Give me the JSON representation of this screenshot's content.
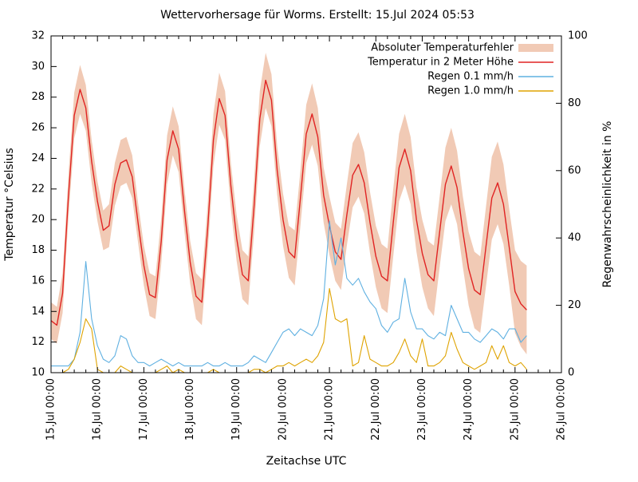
{
  "accent_colors": {
    "error_band": "#f1cab5",
    "temperature_line": "#e02423",
    "rain01_line": "#5fb0e1",
    "rain10_line": "#dfa300",
    "frame": "#000000",
    "background": "#ffffff"
  },
  "chart_data": {
    "type": "line",
    "title": "Wettervorhersage für Worms. Erstellt: 15.Jul 2024 05:53",
    "xlabel": "Zeitachse UTC",
    "ylabel": "Temperatur °Celsius",
    "y2label": "Regenwahrscheinlichkeit in %",
    "xlim_days": [
      0,
      11
    ],
    "ylim": [
      10,
      32
    ],
    "y2lim": [
      0,
      100
    ],
    "y_ticks": [
      10,
      12,
      14,
      16,
      18,
      20,
      22,
      24,
      26,
      28,
      30,
      32
    ],
    "y2_ticks": [
      0,
      20,
      40,
      60,
      80,
      100
    ],
    "x_tick_labels": [
      "15.Jul 00:00",
      "16.Jul 00:00",
      "17.Jul 00:00",
      "18.Jul 00:00",
      "19.Jul 00:00",
      "20.Jul 00:00",
      "21.Jul 00:00",
      "22.Jul 00:00",
      "23.Jul 00:00",
      "24.Jul 00:00",
      "25.Jul 00:00",
      "26.Jul 00:00"
    ],
    "x_minor_ticks_per_day": 3,
    "grid": "off",
    "legend_position": "top-right-inside",
    "x_start_day": 0,
    "x_step_day": 0.125,
    "series": [
      {
        "name": "Absoluter Temperaturfehler",
        "kind": "band",
        "axis": "y1",
        "color": "#f1cab5",
        "err": [
          1.2,
          1.2,
          1.3,
          1.4,
          1.5,
          1.6,
          1.5,
          1.4,
          1.3,
          1.3,
          1.4,
          1.4,
          1.5,
          1.5,
          1.4,
          1.3,
          1.3,
          1.4,
          1.4,
          1.5,
          1.6,
          1.6,
          1.5,
          1.4,
          1.4,
          1.5,
          1.5,
          1.6,
          1.7,
          1.7,
          1.6,
          1.5,
          1.5,
          1.6,
          1.6,
          1.7,
          1.8,
          1.8,
          1.7,
          1.6,
          1.7,
          1.7,
          1.8,
          1.8,
          1.9,
          2.0,
          1.9,
          1.8,
          1.9,
          1.9,
          2.0,
          2.0,
          2.1,
          2.1,
          2.0,
          2.0,
          2.0,
          2.1,
          2.1,
          2.2,
          2.2,
          2.3,
          2.2,
          2.1,
          2.2,
          2.2,
          2.3,
          2.3,
          2.4,
          2.5,
          2.4,
          2.3,
          2.4,
          2.5,
          2.5,
          2.6,
          2.7,
          2.7,
          2.6,
          2.5,
          2.7,
          2.8,
          2.9
        ]
      },
      {
        "name": "Temperatur in 2 Meter Höhe",
        "kind": "line",
        "axis": "y1",
        "color": "#e02423",
        "values": [
          13.4,
          13.1,
          15.2,
          21.5,
          26.8,
          28.5,
          27.3,
          23.8,
          21.2,
          19.3,
          19.6,
          22.3,
          23.7,
          23.9,
          22.8,
          19.8,
          17.0,
          15.1,
          14.9,
          18.6,
          23.9,
          25.8,
          24.6,
          20.6,
          17.2,
          15.0,
          14.6,
          19.4,
          25.2,
          27.9,
          26.8,
          22.2,
          18.8,
          16.4,
          16.0,
          20.8,
          26.6,
          29.1,
          27.8,
          23.2,
          20.0,
          17.9,
          17.5,
          21.4,
          25.6,
          26.9,
          25.4,
          21.6,
          19.6,
          17.9,
          17.4,
          20.3,
          22.9,
          23.6,
          22.4,
          19.8,
          17.6,
          16.3,
          16.0,
          19.8,
          23.4,
          24.6,
          23.2,
          20.0,
          17.8,
          16.4,
          16.0,
          19.2,
          22.3,
          23.5,
          22.1,
          19.2,
          16.8,
          15.4,
          15.1,
          18.3,
          21.4,
          22.4,
          21.0,
          18.2,
          15.3,
          14.5,
          14.1
        ]
      },
      {
        "name": "Regen 0.1 mm/h",
        "kind": "line",
        "axis": "y2",
        "color": "#5fb0e1",
        "values": [
          2,
          2,
          2,
          2,
          4,
          12,
          33,
          16,
          8,
          4,
          3,
          5,
          11,
          10,
          5,
          3,
          3,
          2,
          3,
          4,
          3,
          2,
          3,
          2,
          2,
          2,
          2,
          3,
          2,
          2,
          3,
          2,
          2,
          2,
          3,
          5,
          4,
          3,
          6,
          9,
          12,
          13,
          11,
          13,
          12,
          11,
          14,
          22,
          45,
          32,
          40,
          28,
          26,
          28,
          24,
          21,
          19,
          14,
          12,
          15,
          16,
          28,
          18,
          13,
          13,
          11,
          10,
          12,
          11,
          20,
          16,
          12,
          12,
          10,
          9,
          11,
          13,
          12,
          10,
          13,
          13,
          9,
          11
        ]
      },
      {
        "name": "Regen 1.0 mm/h",
        "kind": "line",
        "axis": "y2",
        "color": "#dfa300",
        "values": [
          0,
          0,
          0,
          1,
          4,
          9,
          16,
          13,
          1,
          0,
          0,
          0,
          2,
          1,
          0,
          0,
          0,
          0,
          0,
          1,
          2,
          0,
          1,
          0,
          0,
          0,
          0,
          0,
          1,
          0,
          0,
          0,
          0,
          0,
          0,
          1,
          1,
          0,
          1,
          2,
          2,
          3,
          2,
          3,
          4,
          3,
          5,
          9,
          25,
          16,
          15,
          16,
          2,
          3,
          11,
          4,
          3,
          2,
          2,
          3,
          6,
          10,
          5,
          3,
          10,
          2,
          2,
          3,
          5,
          12,
          7,
          3,
          2,
          1,
          2,
          3,
          8,
          4,
          8,
          3,
          2,
          3,
          1
        ]
      }
    ]
  }
}
